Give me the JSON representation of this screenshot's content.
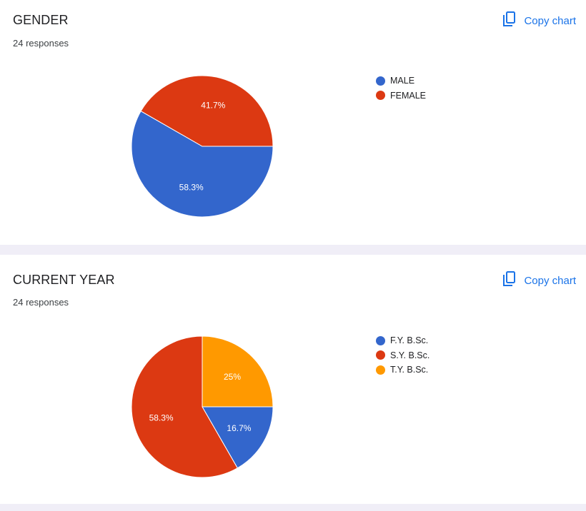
{
  "copy_label": "Copy chart",
  "chart_data": [
    {
      "type": "pie",
      "title": "GENDER",
      "subtitle": "24 responses",
      "legend_position": "right",
      "slices": [
        {
          "label": "MALE",
          "value": 58.3,
          "display": "58.3%",
          "color": "#3366cc"
        },
        {
          "label": "FEMALE",
          "value": 41.7,
          "display": "41.7%",
          "color": "#dc3912"
        }
      ]
    },
    {
      "type": "pie",
      "title": "CURRENT YEAR",
      "subtitle": "24 responses",
      "legend_position": "right",
      "slices": [
        {
          "label": "F.Y. B.Sc.",
          "value": 16.7,
          "display": "16.7%",
          "color": "#3366cc"
        },
        {
          "label": "S.Y. B.Sc.",
          "value": 58.3,
          "display": "58.3%",
          "color": "#dc3912"
        },
        {
          "label": "T.Y. B.Sc.",
          "value": 25,
          "display": "25%",
          "color": "#ff9900"
        }
      ]
    }
  ]
}
